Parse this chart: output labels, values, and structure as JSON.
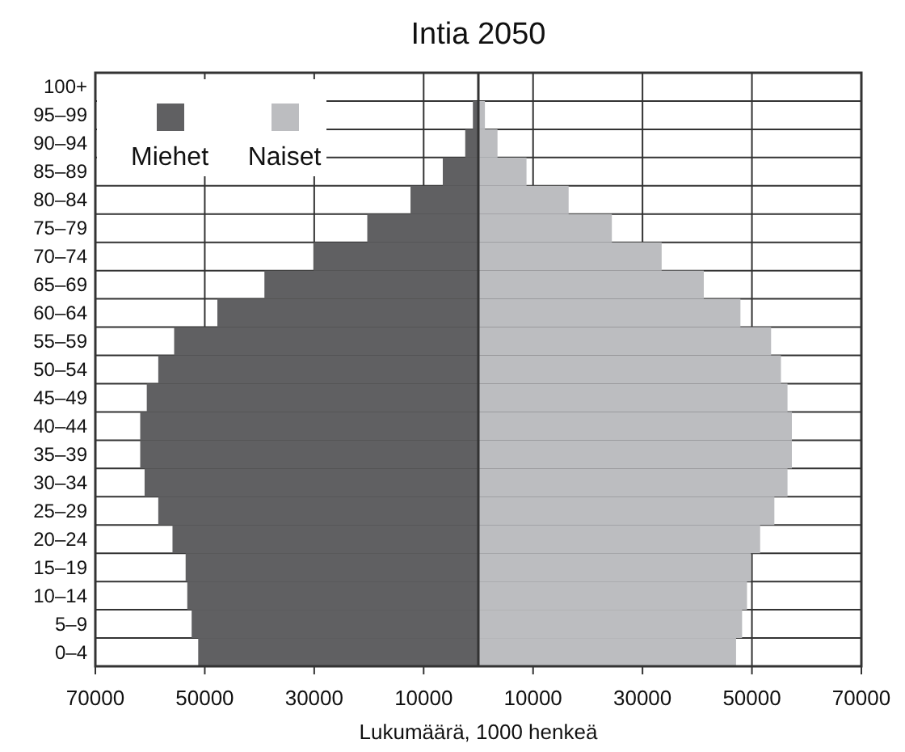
{
  "chart_data": {
    "type": "bar",
    "orientation": "horizontal",
    "title": "Intia 2050",
    "xlabel": "Lukumäärä, 1000 henkeä",
    "categories": [
      "100+",
      "95–99",
      "90–94",
      "85–89",
      "80–84",
      "75–79",
      "70–74",
      "65–69",
      "60–64",
      "55–59",
      "50–54",
      "45–49",
      "40–44",
      "35–39",
      "30–34",
      "25–29",
      "20–24",
      "15–19",
      "10–14",
      "5–9",
      "0–4"
    ],
    "series": [
      {
        "name": "Miehet",
        "color": "#606062",
        "values": [
          -100,
          -1000,
          -2400,
          -6500,
          -12400,
          -20300,
          -30100,
          -39100,
          -47700,
          -55600,
          -58500,
          -60600,
          -61800,
          -61800,
          -61000,
          -58500,
          -55900,
          -53500,
          -53200,
          -52400,
          -51200
        ]
      },
      {
        "name": "Naiset",
        "color": "#bcbdc0",
        "values": [
          100,
          1200,
          3500,
          8800,
          16500,
          24400,
          33500,
          41200,
          47900,
          53500,
          55300,
          56500,
          57300,
          57300,
          56500,
          54100,
          51500,
          49800,
          49100,
          48200,
          47100
        ]
      }
    ],
    "xlim": [
      -70000,
      70000
    ],
    "xticks": [
      {
        "value": -70000,
        "label": "70000"
      },
      {
        "value": -50000,
        "label": "50000"
      },
      {
        "value": -30000,
        "label": "30000"
      },
      {
        "value": -10000,
        "label": "10000"
      },
      10000,
      30000,
      50000,
      70000
    ],
    "grid": true,
    "legend": "top left",
    "stacked": true
  }
}
